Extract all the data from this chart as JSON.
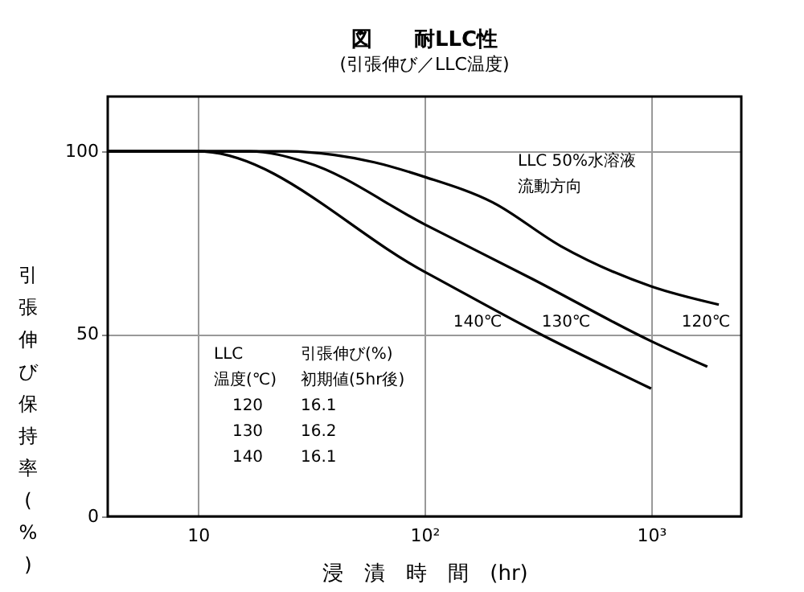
{
  "chart_data": {
    "type": "line",
    "title": "図　　耐LLC性",
    "subtitle": "(引張伸び／LLC温度)",
    "xlabel": "浸　漬　時　間　(hr)",
    "ylabel": "引張伸び保持率(%)",
    "series": [
      {
        "color": "#000000",
        "x": [
          4,
          10,
          25,
          40,
          60,
          100,
          200,
          400,
          1000,
          1990
        ],
        "values": [
          100,
          100,
          100,
          99,
          97,
          93,
          86,
          74,
          63,
          58
        ]
      },
      {
        "color": "#000000",
        "x": [
          4,
          10,
          17,
          30,
          100,
          300,
          1000,
          1770
        ],
        "values": [
          100,
          100,
          100,
          97,
          80,
          65,
          48,
          41
        ]
      },
      {
        "color": "#000000",
        "x": [
          4,
          10,
          100,
          300,
          1000
        ],
        "values": [
          100,
          100,
          67,
          51,
          35
        ]
      }
    ],
    "annotations": [
      "LLC 50%水溶液",
      "流動方向",
      "140℃",
      "130℃",
      "120℃",
      "LLC",
      "引張伸び(%)",
      "温度(℃)",
      "初期値(5hr後)",
      "120",
      "16.1",
      "130",
      "16.2",
      "140",
      "16.1"
    ],
    "log": "x",
    "xlim": [
      4,
      2500
    ],
    "ylim": [
      0,
      115
    ],
    "xticks": [
      {
        "value": 10,
        "label": "10"
      },
      {
        "value": 100,
        "label": "10²"
      },
      {
        "value": 1000,
        "label": "10³"
      }
    ],
    "yticks": [
      0,
      50,
      100
    ],
    "grid": true,
    "marker": "none",
    "line_style": "solid"
  }
}
